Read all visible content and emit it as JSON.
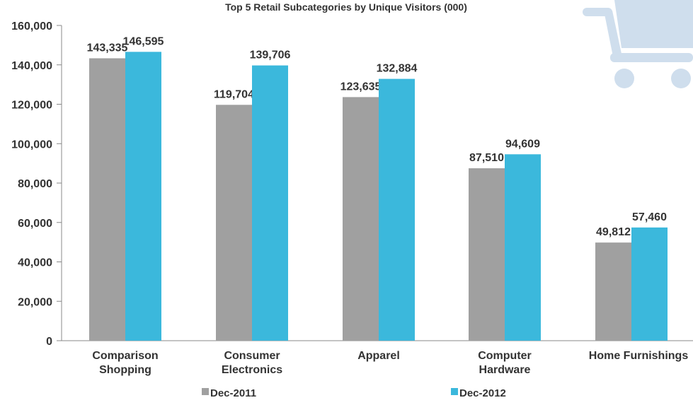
{
  "chart_data": {
    "type": "bar",
    "title": "Top 5 Retail Subcategories by Unique Visitors (000)",
    "xlabel": "",
    "ylabel": "",
    "ylim": [
      0,
      160000
    ],
    "yticks": [
      0,
      20000,
      40000,
      60000,
      80000,
      100000,
      120000,
      140000,
      160000
    ],
    "ytick_labels": [
      "0",
      "20,000",
      "40,000",
      "60,000",
      "80,000",
      "100,000",
      "120,000",
      "140,000",
      "160,000"
    ],
    "categories": [
      [
        "Comparison",
        "Shopping"
      ],
      [
        "Consumer",
        "Electronics"
      ],
      [
        "Apparel"
      ],
      [
        "Computer",
        "Hardware"
      ],
      [
        "Home Furnishings"
      ]
    ],
    "series": [
      {
        "name": "Dec-2011",
        "color": "#a0a0a0",
        "values": [
          143335,
          119704,
          123635,
          87510,
          49812
        ],
        "labels": [
          "143,335",
          "119,704",
          "123,635",
          "87,510",
          "49,812"
        ]
      },
      {
        "name": "Dec-2012",
        "color": "#3bb8dc",
        "values": [
          146595,
          139706,
          132884,
          94609,
          57460
        ],
        "labels": [
          "146,595",
          "139,706",
          "132,884",
          "94,609",
          "57,460"
        ]
      }
    ],
    "legend_position": "bottom",
    "grid": false
  },
  "decoration": {
    "icon": "shopping-cart-icon",
    "color": "#cfdeed"
  }
}
